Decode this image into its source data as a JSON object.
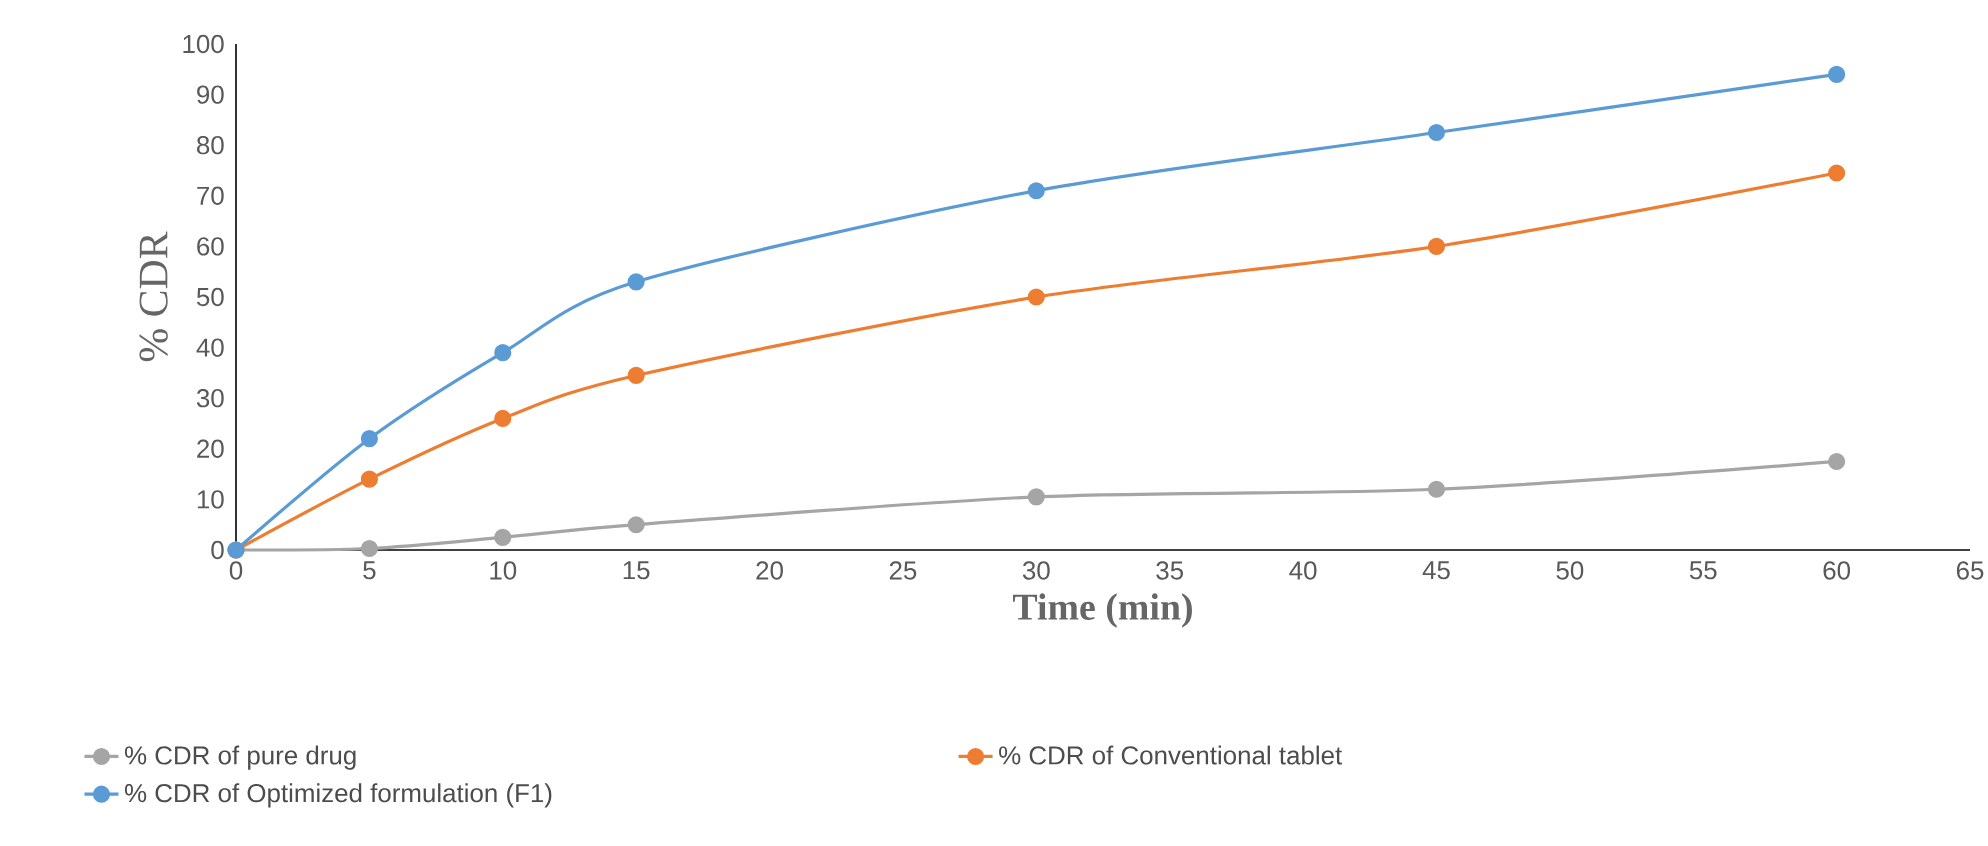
{
  "chart_data": {
    "type": "line",
    "xlabel": "Time (min)",
    "ylabel": "% CDR",
    "x": [
      0,
      5,
      10,
      15,
      30,
      45,
      60
    ],
    "series": [
      {
        "name": "% CDR of pure drug",
        "color": "#a5a5a5",
        "values": [
          0,
          0.3,
          2.5,
          5,
          10.5,
          12,
          17.5
        ]
      },
      {
        "name": "% CDR of Conventional tablet",
        "color": "#ed7d31",
        "values": [
          0,
          14,
          26,
          34.5,
          50,
          60,
          74.5
        ]
      },
      {
        "name": "% CDR of Optimized formulation (F1)",
        "color": "#5b9bd5",
        "values": [
          0,
          22,
          39,
          53,
          71,
          82.5,
          94
        ]
      }
    ],
    "xlim": [
      0,
      65
    ],
    "xticks": [
      0,
      5,
      10,
      15,
      20,
      25,
      30,
      35,
      40,
      45,
      50,
      55,
      60,
      65
    ],
    "ylim": [
      0,
      100
    ],
    "yticks": [
      0,
      10,
      20,
      30,
      40,
      50,
      60,
      70,
      80,
      90,
      100
    ],
    "grid": false,
    "legend": "bottom",
    "marker": "circle",
    "line_style": "solid"
  }
}
